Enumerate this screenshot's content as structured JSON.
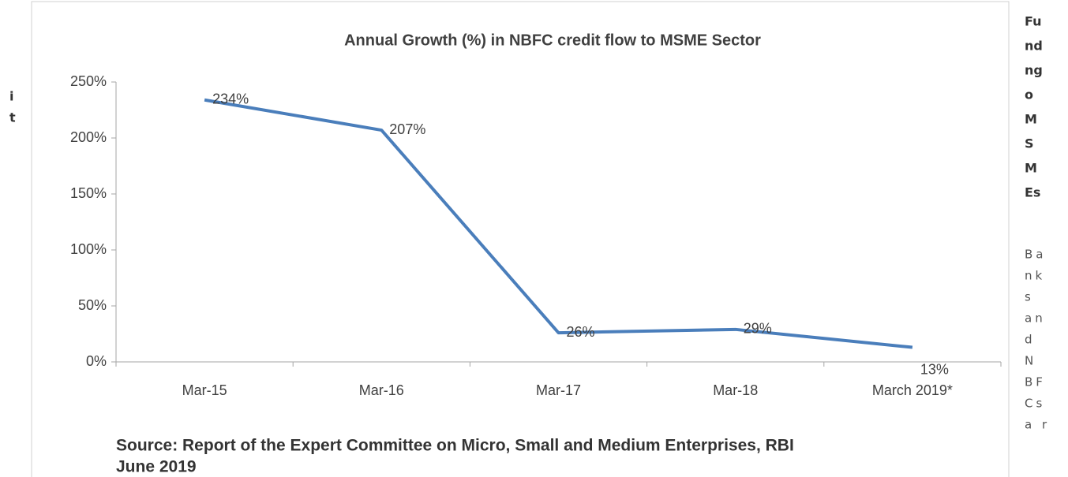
{
  "chart_data": {
    "type": "line",
    "title": "Annual Growth (%) in NBFC credit flow to MSME Sector",
    "categories": [
      "Mar-15",
      "Mar-16",
      "Mar-17",
      "Mar-18",
      "March 2019*"
    ],
    "values": [
      234,
      207,
      26,
      29,
      13
    ],
    "value_labels": [
      "234%",
      "207%",
      "26%",
      "29%",
      "13%"
    ],
    "color": "#4a7ebb",
    "ylim": [
      0,
      250
    ],
    "yticks": [
      {
        "value": 0,
        "label": "0%"
      },
      {
        "value": 50,
        "label": "50%"
      },
      {
        "value": 100,
        "label": "100%"
      },
      {
        "value": 150,
        "label": "150%"
      },
      {
        "value": 200,
        "label": "200%"
      },
      {
        "value": 250,
        "label": "250%"
      }
    ],
    "grid": false,
    "source": [
      "Source: Report of the Expert Committee on Micro, Small and Medium Enterprises, RBI",
      "June 2019"
    ]
  },
  "left_fragment": [
    "i",
    "t"
  ],
  "right_column": {
    "heading": [
      "Fu",
      "nd",
      "ng",
      "o",
      "M",
      "S",
      "M",
      "Es"
    ],
    "body": [
      "Ba",
      "nk",
      "s",
      "an",
      "d",
      "N",
      "BF",
      "Cs",
      "a r"
    ]
  }
}
